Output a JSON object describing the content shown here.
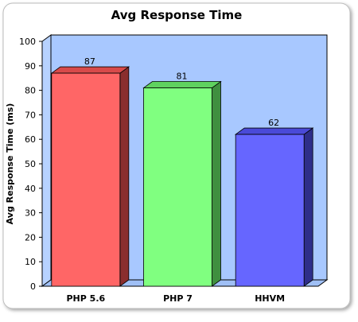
{
  "chart_data": {
    "type": "bar",
    "title": "Avg Response Time",
    "xlabel": "",
    "ylabel": "Avg Response Time (ms)",
    "categories": [
      "PHP 5.6",
      "PHP 7",
      "HHVM"
    ],
    "values": [
      87,
      81,
      62
    ],
    "ylim": [
      0,
      100
    ],
    "yticks": [
      0,
      10,
      20,
      30,
      40,
      50,
      60,
      70,
      80,
      90,
      100
    ],
    "data_labels": [
      "87",
      "81",
      "62"
    ],
    "bar_colors": [
      "#ff6666",
      "#80ff80",
      "#6666ff"
    ],
    "bar_side_colors": [
      "#8a2e2e",
      "#3f8f3f",
      "#2e2e8a"
    ],
    "bar_top_colors": [
      "#d84a4a",
      "#5fd25f",
      "#4a4ad8"
    ],
    "plot_background": "#a8c8ff",
    "grid": false,
    "legend": "none",
    "style": "3d-bar"
  }
}
